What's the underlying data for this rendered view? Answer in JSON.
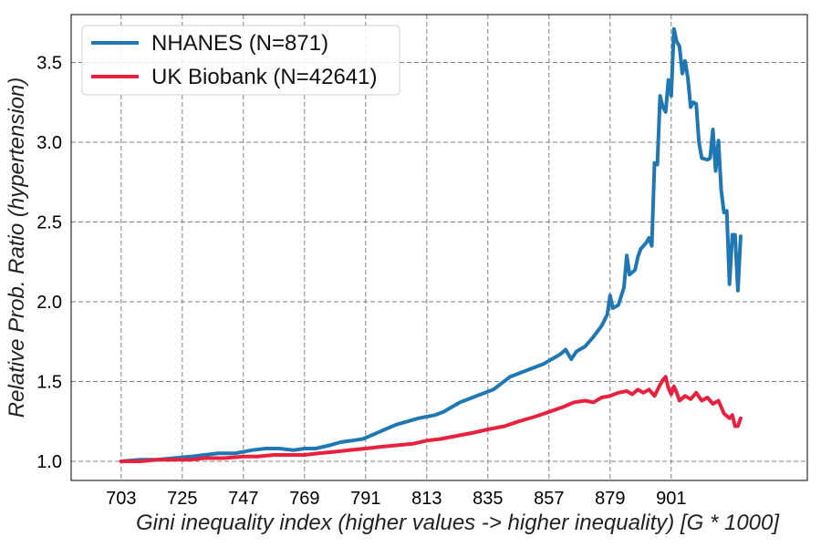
{
  "chart_data": {
    "type": "line",
    "xlabel": "Gini inequality index (higher values -> higher inequality) [G * 1000]",
    "ylabel": "Relative Prob. Ratio (hypertension)",
    "xlim": [
      685,
      950
    ],
    "ylim": [
      0.88,
      3.8
    ],
    "xticks": [
      703,
      725,
      747,
      769,
      791,
      813,
      835,
      857,
      879,
      901
    ],
    "yticks": [
      1.0,
      1.5,
      2.0,
      2.5,
      3.0,
      3.5
    ],
    "ytick_labels": [
      "1.0",
      "1.5",
      "2.0",
      "2.5",
      "3.0",
      "3.5"
    ],
    "grid": true,
    "legend_position": "top-left",
    "series": [
      {
        "name": "NHANES (N=871)",
        "color": "#1f77b4",
        "points": [
          [
            703,
            1.0
          ],
          [
            710,
            1.01
          ],
          [
            716,
            1.01
          ],
          [
            722,
            1.02
          ],
          [
            728,
            1.03
          ],
          [
            733,
            1.04
          ],
          [
            738,
            1.05
          ],
          [
            744,
            1.05
          ],
          [
            750,
            1.07
          ],
          [
            755,
            1.08
          ],
          [
            760,
            1.08
          ],
          [
            765,
            1.07
          ],
          [
            769,
            1.08
          ],
          [
            773,
            1.08
          ],
          [
            778,
            1.1
          ],
          [
            782,
            1.12
          ],
          [
            786,
            1.13
          ],
          [
            790,
            1.14
          ],
          [
            794,
            1.17
          ],
          [
            798,
            1.2
          ],
          [
            802,
            1.23
          ],
          [
            806,
            1.25
          ],
          [
            810,
            1.27
          ],
          [
            813,
            1.28
          ],
          [
            816,
            1.29
          ],
          [
            819,
            1.31
          ],
          [
            822,
            1.34
          ],
          [
            825,
            1.37
          ],
          [
            828,
            1.39
          ],
          [
            831,
            1.41
          ],
          [
            834,
            1.43
          ],
          [
            837,
            1.45
          ],
          [
            840,
            1.49
          ],
          [
            843,
            1.53
          ],
          [
            846,
            1.55
          ],
          [
            849,
            1.57
          ],
          [
            852,
            1.59
          ],
          [
            855,
            1.61
          ],
          [
            858,
            1.64
          ],
          [
            861,
            1.67
          ],
          [
            863,
            1.7
          ],
          [
            865,
            1.64
          ],
          [
            867,
            1.69
          ],
          [
            870,
            1.72
          ],
          [
            873,
            1.78
          ],
          [
            876,
            1.85
          ],
          [
            878,
            1.92
          ],
          [
            879,
            2.04
          ],
          [
            880,
            1.96
          ],
          [
            882,
            1.98
          ],
          [
            884,
            2.09
          ],
          [
            885,
            2.29
          ],
          [
            886,
            2.17
          ],
          [
            888,
            2.2
          ],
          [
            889,
            2.28
          ],
          [
            890,
            2.33
          ],
          [
            892,
            2.37
          ],
          [
            893,
            2.4
          ],
          [
            894,
            2.35
          ],
          [
            895,
            2.87
          ],
          [
            896,
            2.86
          ],
          [
            897,
            3.29
          ],
          [
            898,
            3.22
          ],
          [
            899,
            3.19
          ],
          [
            900,
            3.39
          ],
          [
            901,
            3.29
          ],
          [
            902,
            3.71
          ],
          [
            903,
            3.63
          ],
          [
            904,
            3.6
          ],
          [
            905,
            3.43
          ],
          [
            906,
            3.51
          ],
          [
            907,
            3.4
          ],
          [
            908,
            3.22
          ],
          [
            909,
            3.25
          ],
          [
            910,
            3.24
          ],
          [
            911,
            3.0
          ],
          [
            912,
            2.9
          ],
          [
            914,
            2.89
          ],
          [
            915,
            2.9
          ],
          [
            916,
            3.08
          ],
          [
            917,
            2.82
          ],
          [
            918,
            3.01
          ],
          [
            919,
            2.7
          ],
          [
            920,
            2.56
          ],
          [
            921,
            2.57
          ],
          [
            922,
            2.11
          ],
          [
            923,
            2.42
          ],
          [
            924,
            2.42
          ],
          [
            925,
            2.07
          ],
          [
            926,
            2.41
          ]
        ]
      },
      {
        "name": "UK Biobank (N=42641)",
        "color": "#e8213f",
        "points": [
          [
            703,
            1.0
          ],
          [
            710,
            1.0
          ],
          [
            716,
            1.01
          ],
          [
            722,
            1.01
          ],
          [
            728,
            1.01
          ],
          [
            733,
            1.02
          ],
          [
            740,
            1.02
          ],
          [
            747,
            1.03
          ],
          [
            752,
            1.03
          ],
          [
            758,
            1.04
          ],
          [
            763,
            1.04
          ],
          [
            769,
            1.04
          ],
          [
            774,
            1.05
          ],
          [
            780,
            1.06
          ],
          [
            785,
            1.07
          ],
          [
            791,
            1.08
          ],
          [
            796,
            1.09
          ],
          [
            802,
            1.1
          ],
          [
            808,
            1.11
          ],
          [
            813,
            1.13
          ],
          [
            818,
            1.14
          ],
          [
            824,
            1.16
          ],
          [
            830,
            1.18
          ],
          [
            835,
            1.2
          ],
          [
            841,
            1.22
          ],
          [
            846,
            1.25
          ],
          [
            852,
            1.28
          ],
          [
            857,
            1.31
          ],
          [
            862,
            1.34
          ],
          [
            866,
            1.37
          ],
          [
            870,
            1.38
          ],
          [
            873,
            1.37
          ],
          [
            876,
            1.4
          ],
          [
            879,
            1.41
          ],
          [
            882,
            1.43
          ],
          [
            885,
            1.44
          ],
          [
            887,
            1.42
          ],
          [
            889,
            1.45
          ],
          [
            891,
            1.43
          ],
          [
            893,
            1.45
          ],
          [
            895,
            1.41
          ],
          [
            897,
            1.48
          ],
          [
            898,
            1.51
          ],
          [
            899,
            1.53
          ],
          [
            900,
            1.46
          ],
          [
            901,
            1.42
          ],
          [
            902,
            1.47
          ],
          [
            903,
            1.43
          ],
          [
            904,
            1.38
          ],
          [
            906,
            1.41
          ],
          [
            908,
            1.39
          ],
          [
            910,
            1.43
          ],
          [
            912,
            1.38
          ],
          [
            914,
            1.4
          ],
          [
            916,
            1.36
          ],
          [
            918,
            1.38
          ],
          [
            920,
            1.3
          ],
          [
            922,
            1.27
          ],
          [
            923,
            1.29
          ],
          [
            924,
            1.22
          ],
          [
            925,
            1.22
          ],
          [
            926,
            1.27
          ]
        ]
      }
    ]
  }
}
